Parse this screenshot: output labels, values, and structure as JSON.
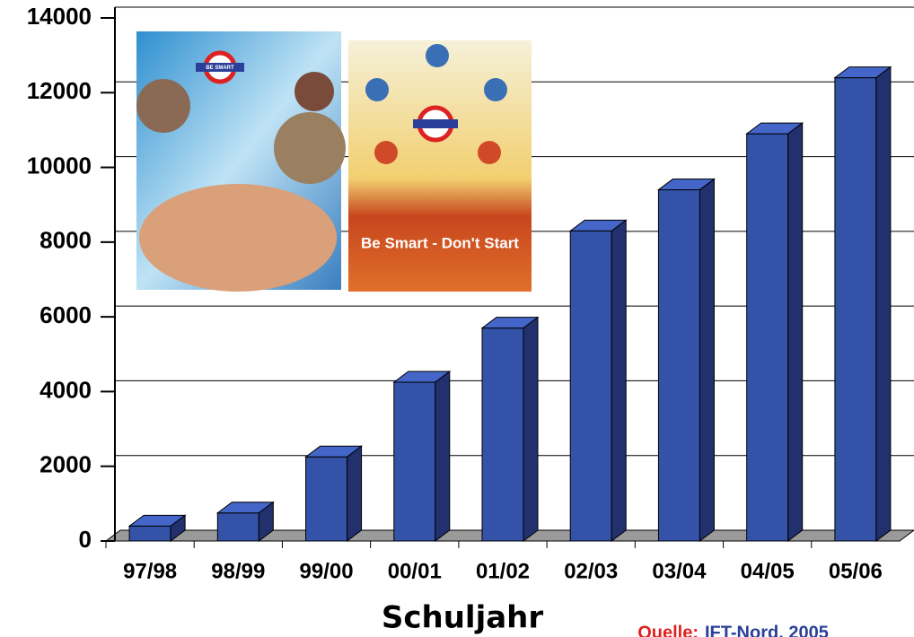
{
  "chart_data": {
    "type": "bar3d",
    "x_label": "Schuljahr",
    "source_prefix": "Quelle:",
    "source": "IFT-Nord, 2005",
    "categories": [
      "97/98",
      "98/99",
      "99/00",
      "00/01",
      "01/02",
      "02/03",
      "03/04",
      "04/05",
      "05/06"
    ],
    "values": [
      400,
      750,
      2250,
      4250,
      5700,
      8300,
      9400,
      10900,
      12400
    ],
    "color": "#3352a8",
    "ylim": [
      0,
      14000
    ],
    "yticks": [
      0,
      2000,
      4000,
      6000,
      8000,
      10000,
      12000,
      14000
    ],
    "grid": true,
    "annotations": [
      "BE SMART",
      "Be Smart - Don't Start"
    ]
  }
}
